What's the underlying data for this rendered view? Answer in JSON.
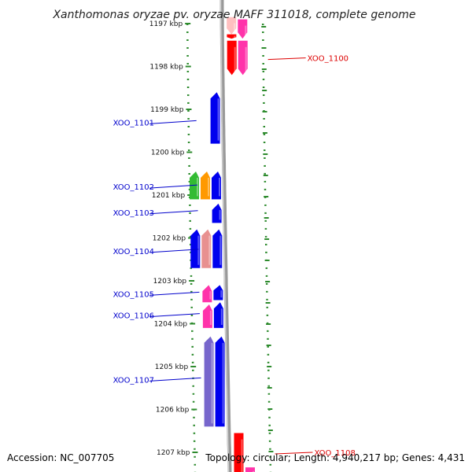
{
  "header": {
    "title": "Xanthomonas oryzae pv. oryzae MAFF 311018, complete genome"
  },
  "footer": {
    "accession": "Accession: NC_007705",
    "summary": "Topology: circular; Length: 4,940,217 bp; Genes: 4,431"
  },
  "colors": {
    "left_strand_label": "#0000cc",
    "right_strand_label": "#dd0000",
    "track_dots": "#2e8b2e",
    "backbone": "#999999"
  },
  "kbp_ticks": [
    {
      "label": "1197 kbp",
      "kbp": 1197
    },
    {
      "label": "1198 kbp",
      "kbp": 1198
    },
    {
      "label": "1199 kbp",
      "kbp": 1199
    },
    {
      "label": "1200 kbp",
      "kbp": 1200
    },
    {
      "label": "1201 kbp",
      "kbp": 1201
    },
    {
      "label": "1202 kbp",
      "kbp": 1202
    },
    {
      "label": "1203 kbp",
      "kbp": 1203
    },
    {
      "label": "1204 kbp",
      "kbp": 1204
    },
    {
      "label": "1205 kbp",
      "kbp": 1205
    },
    {
      "label": "1206 kbp",
      "kbp": 1206
    },
    {
      "label": "1207 kbp",
      "kbp": 1207
    }
  ],
  "gene_labels": [
    {
      "name": "XOO_1100",
      "side": "right",
      "kbp": 1197.8
    },
    {
      "name": "XOO_1101",
      "side": "left",
      "kbp": 1199.3
    },
    {
      "name": "XOO_1102",
      "side": "left",
      "kbp": 1200.8
    },
    {
      "name": "XOO_1103",
      "side": "left",
      "kbp": 1201.4
    },
    {
      "name": "XOO_1104",
      "side": "left",
      "kbp": 1202.3
    },
    {
      "name": "XOO_1105",
      "side": "left",
      "kbp": 1203.3
    },
    {
      "name": "XOO_1106",
      "side": "left",
      "kbp": 1203.8
    },
    {
      "name": "XOO_1107",
      "side": "left",
      "kbp": 1205.3
    },
    {
      "name": "XOO_1108",
      "side": "right",
      "kbp": 1207.0
    }
  ],
  "features": [
    {
      "name": "gene-1100a-pink",
      "strand": "right",
      "lane": 0,
      "start": 1196.85,
      "end": 1197.25,
      "color": "#ffc0c0"
    },
    {
      "name": "gene-1100a-red",
      "strand": "right",
      "lane": 0,
      "start": 1197.25,
      "end": 1197.35,
      "color": "#ff0000"
    },
    {
      "name": "gene-1100a-mag",
      "strand": "right",
      "lane": 1,
      "start": 1196.9,
      "end": 1197.35,
      "color": "#ff33aa"
    },
    {
      "name": "gene-1100b-red",
      "strand": "right",
      "lane": 0,
      "start": 1197.4,
      "end": 1198.2,
      "color": "#ff0000"
    },
    {
      "name": "gene-1100b-mag",
      "strand": "right",
      "lane": 1,
      "start": 1197.4,
      "end": 1198.2,
      "color": "#ff33aa"
    },
    {
      "name": "gene-1101",
      "strand": "left",
      "lane": 0,
      "start": 1198.6,
      "end": 1199.8,
      "color": "#0000ee"
    },
    {
      "name": "gene-1102-green",
      "strand": "left",
      "lane": 2,
      "start": 1200.45,
      "end": 1201.1,
      "color": "#33bb33"
    },
    {
      "name": "gene-1102-orange",
      "strand": "left",
      "lane": 1,
      "start": 1200.45,
      "end": 1201.1,
      "color": "#ff9900"
    },
    {
      "name": "gene-1102-blue",
      "strand": "left",
      "lane": 0,
      "start": 1200.45,
      "end": 1201.1,
      "color": "#0000ee"
    },
    {
      "name": "gene-1103",
      "strand": "left",
      "lane": 0,
      "start": 1201.2,
      "end": 1201.65,
      "color": "#0000ee"
    },
    {
      "name": "gene-1104-blue",
      "strand": "left",
      "lane": 2,
      "start": 1201.8,
      "end": 1202.7,
      "color": "#0000ee"
    },
    {
      "name": "gene-1104-salmon",
      "strand": "left",
      "lane": 1,
      "start": 1201.8,
      "end": 1202.7,
      "color": "#e89090"
    },
    {
      "name": "gene-1104-main",
      "strand": "left",
      "lane": 0,
      "start": 1201.8,
      "end": 1202.7,
      "color": "#0000ee"
    },
    {
      "name": "gene-1105-pink",
      "strand": "left",
      "lane": 1,
      "start": 1203.1,
      "end": 1203.5,
      "color": "#ff33aa"
    },
    {
      "name": "gene-1105-blue",
      "strand": "left",
      "lane": 0,
      "start": 1203.1,
      "end": 1203.45,
      "color": "#0000ee"
    },
    {
      "name": "gene-1106-pink",
      "strand": "left",
      "lane": 1,
      "start": 1203.55,
      "end": 1204.1,
      "color": "#ff33aa"
    },
    {
      "name": "gene-1106-blue",
      "strand": "left",
      "lane": 0,
      "start": 1203.5,
      "end": 1204.1,
      "color": "#0000ee"
    },
    {
      "name": "gene-1107-purple",
      "strand": "left",
      "lane": 1,
      "start": 1204.3,
      "end": 1206.4,
      "color": "#7766cc"
    },
    {
      "name": "gene-1107-blue",
      "strand": "left",
      "lane": 0,
      "start": 1204.3,
      "end": 1206.4,
      "color": "#0000ee"
    },
    {
      "name": "gene-1108-red",
      "strand": "right",
      "lane": 0,
      "start": 1206.55,
      "end": 1207.6,
      "color": "#ff0000"
    },
    {
      "name": "gene-1108-mag",
      "strand": "right",
      "lane": 1,
      "start": 1207.35,
      "end": 1207.6,
      "color": "#ff33aa"
    }
  ]
}
